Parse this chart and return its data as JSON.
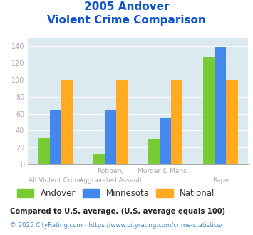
{
  "title_line1": "2005 Andover",
  "title_line2": "Violent Crime Comparison",
  "series": {
    "Andover": [
      31,
      13,
      30,
      127
    ],
    "Minnesota": [
      64,
      65,
      55,
      139
    ],
    "National": [
      100,
      100,
      100,
      100
    ]
  },
  "colors": {
    "Andover": "#77cc33",
    "Minnesota": "#4488ee",
    "National": "#ffaa22"
  },
  "top_labels": [
    "",
    "Robbery",
    "Murder & Mans...",
    ""
  ],
  "bot_labels": [
    "All Violent Crime",
    "Aggravated Assault",
    "",
    "Rape"
  ],
  "ylim": [
    0,
    150
  ],
  "yticks": [
    0,
    20,
    40,
    60,
    80,
    100,
    120,
    140
  ],
  "plot_bg": "#daeaf0",
  "title_color": "#1155cc",
  "axis_label_color": "#aaaaaa",
  "legend_label_color": "#333333",
  "footnote1": "Compared to U.S. average. (U.S. average equals 100)",
  "footnote2": "© 2025 CityRating.com - https://www.cityrating.com/crime-statistics/",
  "footnote1_color": "#222222",
  "footnote2_color": "#4488cc"
}
